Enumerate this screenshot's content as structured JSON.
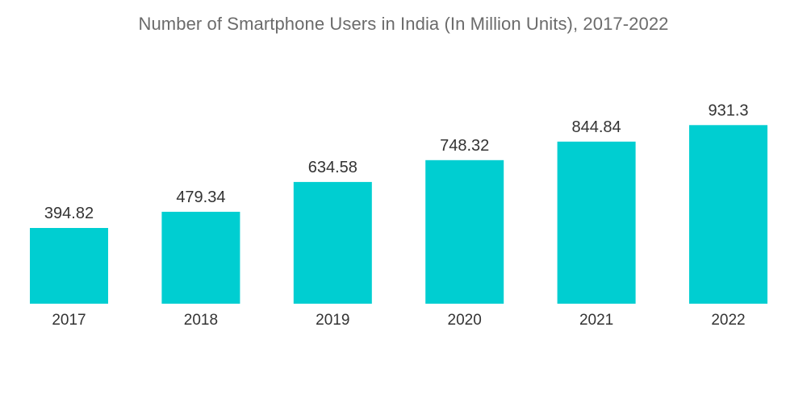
{
  "chart_data": {
    "type": "bar",
    "title": "Number of Smartphone Users in India (In Million Units), 2017-2022",
    "categories": [
      "2017",
      "2018",
      "2019",
      "2020",
      "2021",
      "2022"
    ],
    "values": [
      394.82,
      479.34,
      634.58,
      748.32,
      844.84,
      931.3
    ],
    "value_labels": [
      "394.82",
      "479.34",
      "634.58",
      "748.32",
      "844.84",
      "931.3"
    ],
    "xlabel": "",
    "ylabel": "",
    "ylim": [
      0,
      1000
    ],
    "grid": false,
    "legend": "none",
    "bar_color": "#00CED1"
  }
}
